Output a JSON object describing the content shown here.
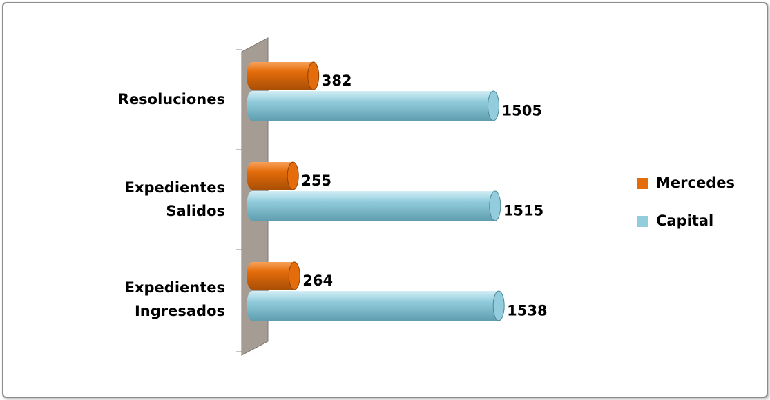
{
  "chart_data": {
    "type": "bar",
    "orientation": "horizontal",
    "categories": [
      "Expedientes Ingresados",
      "Expedientes Salidos",
      "Resoluciones"
    ],
    "series": [
      {
        "name": "Mercedes",
        "color": "#e46c0a",
        "values": [
          264,
          255,
          382
        ]
      },
      {
        "name": "Capital",
        "color": "#93cddd",
        "values": [
          1538,
          1515,
          1505
        ]
      }
    ],
    "xlim": [
      0,
      1800
    ],
    "legend": "right"
  }
}
